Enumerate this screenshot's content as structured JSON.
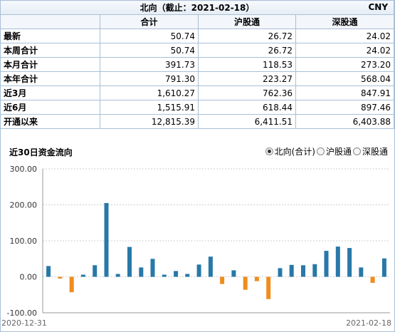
{
  "summary": {
    "title": "北向（截止：2021-02-18）",
    "currency": "CNY",
    "columns": [
      "合计",
      "沪股通",
      "深股通"
    ],
    "rows": [
      {
        "label": "最新",
        "values": [
          "50.74",
          "26.72",
          "24.02"
        ]
      },
      {
        "label": "本周合计",
        "values": [
          "50.74",
          "26.72",
          "24.02"
        ]
      },
      {
        "label": "本月合计",
        "values": [
          "391.73",
          "118.53",
          "273.20"
        ]
      },
      {
        "label": "本年合计",
        "values": [
          "791.30",
          "223.27",
          "568.04"
        ]
      },
      {
        "label": "近3月",
        "values": [
          "1,610.27",
          "762.36",
          "847.91"
        ]
      },
      {
        "label": "近6月",
        "values": [
          "1,515.91",
          "618.44",
          "897.46"
        ]
      },
      {
        "label": "开通以来",
        "values": [
          "12,815.39",
          "6,411.51",
          "6,403.88"
        ]
      }
    ]
  },
  "legend": {
    "options": [
      "北向(合计)",
      "沪股通",
      "深股通"
    ],
    "selected": 0
  },
  "colors": {
    "positive": "#2878a8",
    "negative": "#f08c1e"
  },
  "chart_data": {
    "type": "bar",
    "title": "近30日资金流向",
    "ylim": [
      -100,
      300
    ],
    "yticks": [
      300,
      200,
      100,
      0,
      -100
    ],
    "ytick_labels": [
      "300.00",
      "200.00",
      "100.00",
      "0.00",
      "-100.00"
    ],
    "x_start_label": "2020-12-31",
    "x_end_label": "2021-02-18",
    "grid": "horizontal dashed",
    "values": [
      30,
      -5,
      -43,
      6,
      32,
      205,
      8,
      83,
      26,
      50,
      6,
      16,
      8,
      34,
      56,
      -20,
      18,
      -36,
      -12,
      -62,
      24,
      33,
      32,
      35,
      72,
      84,
      80,
      26,
      -17,
      51
    ]
  }
}
